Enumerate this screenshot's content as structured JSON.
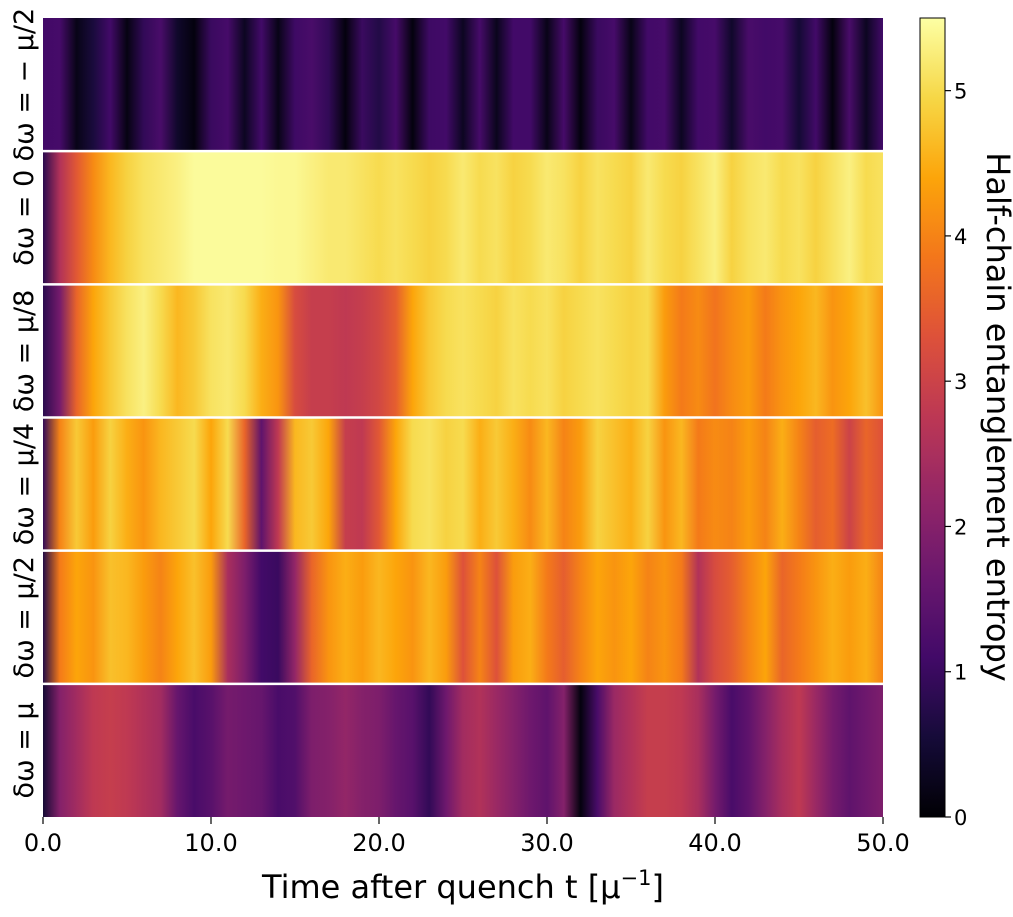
{
  "chart_data": {
    "type": "heatmap",
    "xlabel": "Time after quench t [μ⁻¹]",
    "xlim": [
      0,
      50
    ],
    "x_ticks": [
      "0.0",
      "10.0",
      "20.0",
      "30.0",
      "40.0",
      "50.0"
    ],
    "colorbar": {
      "label": "Half-chain entanglement entropy",
      "range": [
        0,
        5.5
      ],
      "ticks": [
        "0",
        "1",
        "2",
        "3",
        "4",
        "5"
      ],
      "colormap": "inferno"
    },
    "rows": [
      {
        "label": "δω = − μ/2",
        "values": [
          1.1,
          1.15,
          0.2,
          0.6,
          1.1,
          0.15,
          0.9,
          1.2,
          0.4,
          0.1,
          1.0,
          1.15,
          0.3,
          1.1,
          0.2,
          1.05,
          1.2,
          0.9,
          0.1,
          1.0,
          0.7,
          1.15,
          0.1,
          1.05,
          1.1,
          0.3,
          1.15,
          0.25,
          1.1,
          1.1,
          0.2,
          1.15,
          0.1,
          1.0,
          1.15,
          0.2,
          1.1,
          1.15,
          0.3,
          1.1,
          1.15,
          0.4,
          1.2,
          1.1,
          1.15,
          0.5,
          1.1,
          0.1,
          1.2,
          0.3,
          1.1
        ]
      },
      {
        "label": "δω = 0",
        "values": [
          0.8,
          2.6,
          3.4,
          4.1,
          4.6,
          4.9,
          5.1,
          5.2,
          5.3,
          5.45,
          5.45,
          5.45,
          5.45,
          5.45,
          5.4,
          5.4,
          5.3,
          5.2,
          5.2,
          5.1,
          5.0,
          5.1,
          5.0,
          4.9,
          5.0,
          5.2,
          5.0,
          5.1,
          4.9,
          5.0,
          5.2,
          5.1,
          4.9,
          5.1,
          5.0,
          4.9,
          5.2,
          5.0,
          4.9,
          5.1,
          5.3,
          4.9,
          5.1,
          5.2,
          5.0,
          5.1,
          4.9,
          5.1,
          5.3,
          5.0,
          5.1
        ]
      },
      {
        "label": "δω = μ/8",
        "values": [
          0.8,
          1.8,
          3.6,
          4.4,
          4.8,
          5.1,
          5.3,
          5.0,
          4.6,
          4.8,
          5.1,
          5.2,
          5.0,
          4.5,
          4.2,
          3.2,
          2.9,
          2.9,
          2.8,
          2.9,
          3.1,
          3.5,
          4.4,
          4.8,
          5.0,
          5.1,
          5.0,
          4.9,
          5.1,
          5.0,
          5.1,
          4.9,
          5.0,
          5.1,
          5.0,
          4.9,
          5.0,
          4.3,
          3.9,
          4.1,
          3.8,
          4.1,
          4.3,
          3.9,
          4.2,
          4.4,
          4.6,
          4.2,
          4.4,
          4.7,
          4.2
        ]
      },
      {
        "label": "δω = μ/4",
        "values": [
          0.9,
          4.0,
          4.8,
          4.3,
          4.9,
          4.5,
          4.2,
          4.6,
          4.8,
          5.0,
          4.4,
          5.0,
          3.6,
          1.5,
          2.8,
          4.6,
          4.8,
          4.4,
          2.9,
          2.8,
          3.4,
          4.4,
          5.0,
          5.1,
          4.9,
          5.0,
          4.5,
          4.8,
          4.5,
          4.1,
          4.6,
          4.0,
          4.3,
          4.9,
          4.7,
          4.5,
          4.9,
          4.2,
          4.6,
          3.9,
          4.1,
          4.0,
          4.3,
          4.0,
          4.5,
          4.0,
          3.5,
          3.7,
          3.0,
          3.6,
          3.3
        ]
      },
      {
        "label": "δω = μ/2",
        "values": [
          0.7,
          3.9,
          4.4,
          4.2,
          4.7,
          4.6,
          4.3,
          4.0,
          4.4,
          4.7,
          4.3,
          2.5,
          1.9,
          1.1,
          1.0,
          2.2,
          3.6,
          4.2,
          4.5,
          4.3,
          4.6,
          4.4,
          4.2,
          4.6,
          4.3,
          3.3,
          4.0,
          3.3,
          4.3,
          4.5,
          3.9,
          3.5,
          4.0,
          4.4,
          4.2,
          4.4,
          4.0,
          4.2,
          3.9,
          2.6,
          3.2,
          3.5,
          4.0,
          4.4,
          3.6,
          3.9,
          4.2,
          4.5,
          4.3,
          4.5,
          4.0
        ]
      },
      {
        "label": "δω = μ",
        "values": [
          0.5,
          2.0,
          2.4,
          2.8,
          2.9,
          2.8,
          2.6,
          2.4,
          1.6,
          1.2,
          1.4,
          1.8,
          1.7,
          1.6,
          1.2,
          1.3,
          1.9,
          2.0,
          2.2,
          2.0,
          1.9,
          1.6,
          1.4,
          0.9,
          1.7,
          2.4,
          2.6,
          2.3,
          2.0,
          1.7,
          1.5,
          2.0,
          0.1,
          1.2,
          2.3,
          2.6,
          2.9,
          2.9,
          2.8,
          2.5,
          1.8,
          1.2,
          1.5,
          2.0,
          2.5,
          2.8,
          2.3,
          1.8,
          1.5,
          1.7,
          1.9
        ]
      }
    ]
  }
}
